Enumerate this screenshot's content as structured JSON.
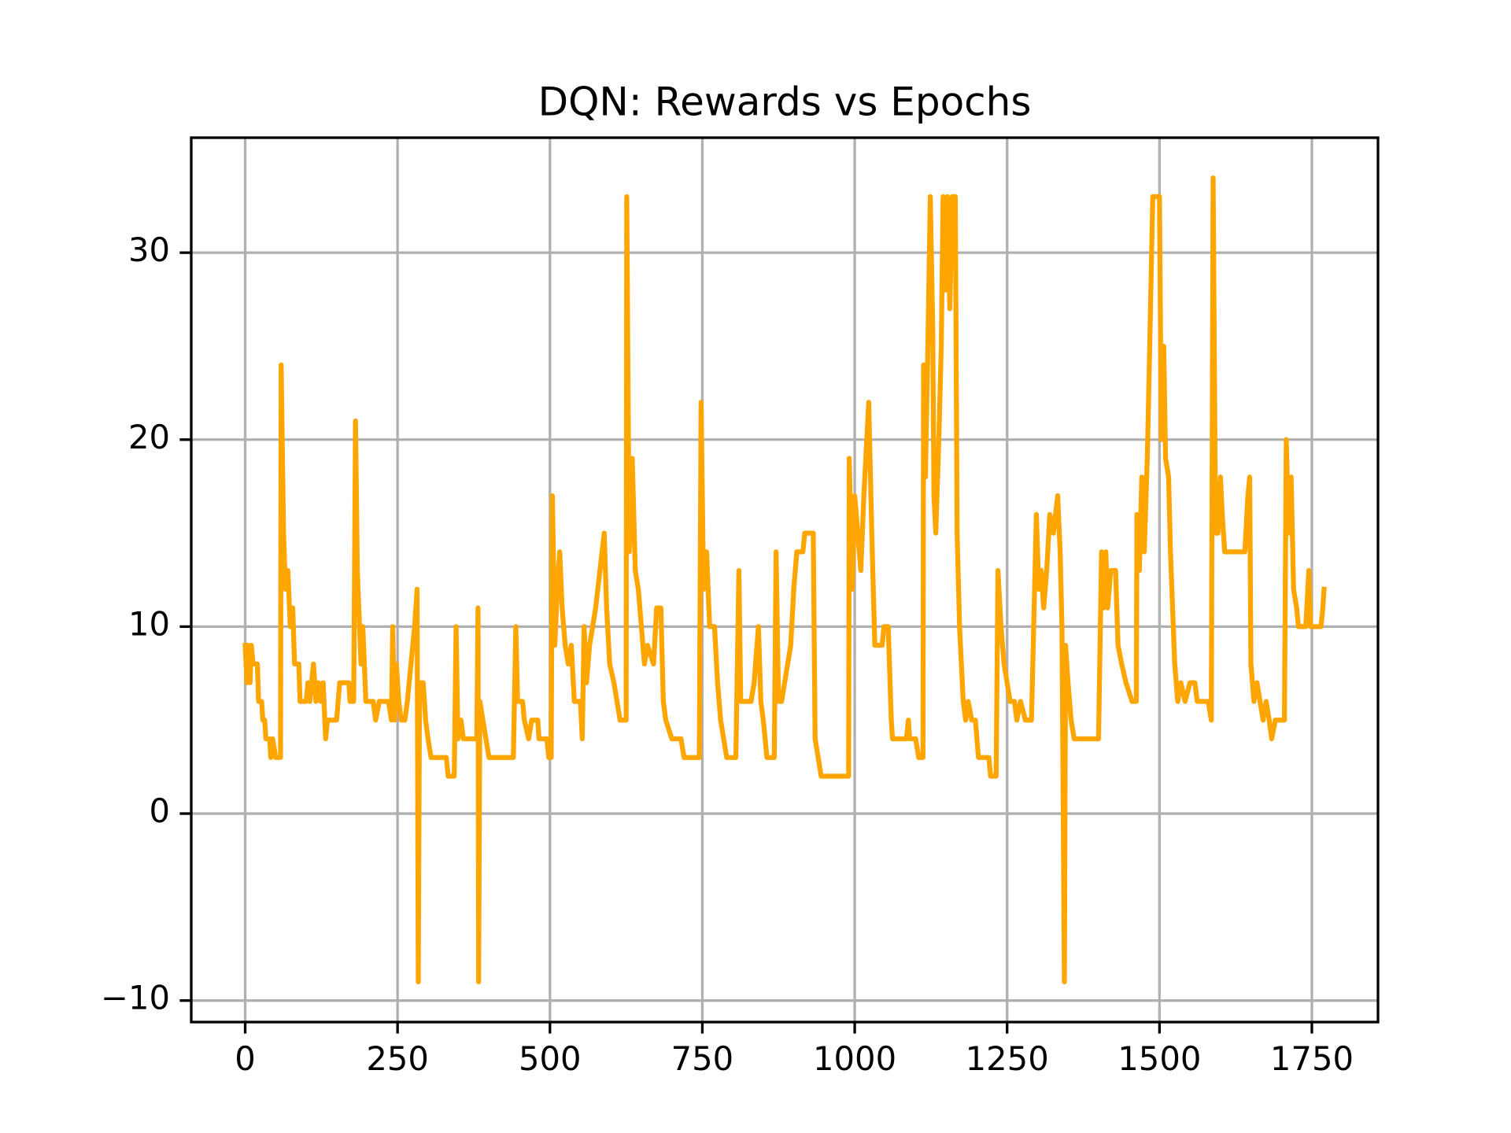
{
  "chart_data": {
    "type": "line",
    "title": "DQN: Rewards vs Epochs",
    "x": [
      0,
      3,
      5,
      8,
      10,
      13,
      20,
      22,
      27,
      29,
      32,
      34,
      40,
      42,
      45,
      50,
      58,
      59,
      63,
      66,
      70,
      74,
      78,
      81,
      88,
      90,
      100,
      103,
      106,
      112,
      116,
      120,
      124,
      128,
      132,
      135,
      150,
      155,
      170,
      172,
      178,
      181,
      184,
      190,
      193,
      198,
      210,
      214,
      220,
      235,
      240,
      242,
      245,
      248,
      252,
      256,
      262,
      266,
      272,
      278,
      282,
      284,
      286,
      292,
      296,
      300,
      305,
      330,
      333,
      343,
      346,
      349,
      354,
      358,
      380,
      382,
      383,
      385,
      390,
      395,
      400,
      440,
      444,
      447,
      455,
      458,
      465,
      470,
      480,
      482,
      495,
      498,
      502,
      504,
      508,
      512,
      516,
      520,
      525,
      530,
      535,
      540,
      550,
      553,
      556,
      560,
      565,
      575,
      589,
      593,
      598,
      605,
      610,
      615,
      625,
      626,
      630,
      635,
      640,
      645,
      650,
      655,
      660,
      670,
      675,
      682,
      686,
      690,
      700,
      715,
      720,
      745,
      748,
      752,
      757,
      762,
      770,
      775,
      780,
      785,
      790,
      805,
      810,
      813,
      830,
      835,
      842,
      846,
      850,
      856,
      868,
      871,
      875,
      880,
      885,
      895,
      900,
      905,
      915,
      918,
      932,
      935,
      940,
      945,
      990,
      991,
      996,
      1000,
      1005,
      1010,
      1015,
      1023,
      1028,
      1033,
      1045,
      1048,
      1055,
      1060,
      1062,
      1085,
      1088,
      1090,
      1100,
      1105,
      1112,
      1113,
      1116,
      1120,
      1124,
      1128,
      1130,
      1133,
      1138,
      1142,
      1145,
      1149,
      1152,
      1156,
      1160,
      1165,
      1168,
      1172,
      1178,
      1182,
      1186,
      1192,
      1198,
      1203,
      1220,
      1223,
      1232,
      1235,
      1240,
      1245,
      1250,
      1255,
      1262,
      1266,
      1272,
      1280,
      1290,
      1298,
      1302,
      1306,
      1310,
      1315,
      1320,
      1326,
      1333,
      1337,
      1340,
      1344,
      1346,
      1350,
      1355,
      1360,
      1400,
      1405,
      1408,
      1412,
      1415,
      1420,
      1428,
      1432,
      1438,
      1445,
      1455,
      1462,
      1463,
      1467,
      1471,
      1475,
      1480,
      1484,
      1489,
      1500,
      1503,
      1507,
      1510,
      1515,
      1518,
      1525,
      1530,
      1535,
      1542,
      1550,
      1558,
      1562,
      1580,
      1585,
      1588,
      1592,
      1596,
      1600,
      1603,
      1607,
      1640,
      1645,
      1648,
      1650,
      1655,
      1660,
      1665,
      1670,
      1675,
      1680,
      1684,
      1690,
      1700,
      1705,
      1708,
      1712,
      1716,
      1720,
      1725,
      1728,
      1740,
      1745,
      1748,
      1765,
      1768,
      1770
    ],
    "series": [
      {
        "color": "#ffa500",
        "values": [
          9,
          7,
          9,
          7,
          9,
          8,
          8,
          6,
          6,
          5,
          5,
          4,
          4,
          3,
          4,
          3,
          3,
          24,
          15,
          12,
          13,
          10,
          11,
          8,
          8,
          6,
          6,
          7,
          6,
          8,
          6,
          7,
          6,
          7,
          4,
          5,
          5,
          7,
          7,
          6,
          6,
          21,
          13,
          8,
          10,
          6,
          6,
          5,
          6,
          6,
          5,
          10,
          5,
          8,
          6,
          5,
          5,
          6,
          8,
          10,
          12,
          -9,
          7,
          7,
          5,
          4,
          3,
          3,
          2,
          2,
          10,
          4,
          5,
          4,
          4,
          11,
          -9,
          6,
          5,
          4,
          3,
          3,
          10,
          6,
          6,
          5,
          4,
          5,
          5,
          4,
          4,
          3,
          3,
          17,
          9,
          12,
          14,
          11,
          9,
          8,
          9,
          6,
          6,
          4,
          10,
          7,
          9,
          11,
          15,
          11,
          8,
          7,
          6,
          5,
          5,
          33,
          14,
          19,
          13,
          12,
          10,
          8,
          9,
          8,
          11,
          11,
          6,
          5,
          4,
          4,
          3,
          3,
          22,
          12,
          14,
          10,
          10,
          7,
          5,
          4,
          3,
          3,
          13,
          6,
          6,
          7,
          10,
          6,
          5,
          3,
          3,
          14,
          6,
          6,
          7,
          9,
          12,
          14,
          14,
          15,
          15,
          4,
          3,
          2,
          2,
          19,
          12,
          17,
          15,
          13,
          17,
          22,
          15,
          9,
          9,
          10,
          10,
          5,
          4,
          4,
          5,
          4,
          4,
          3,
          3,
          24,
          18,
          25,
          33,
          26,
          17,
          15,
          20,
          25,
          33,
          28,
          33,
          27,
          33,
          33,
          15,
          10,
          6,
          5,
          6,
          5,
          5,
          3,
          3,
          2,
          2,
          13,
          10,
          8,
          7,
          6,
          6,
          5,
          6,
          5,
          5,
          16,
          12,
          13,
          11,
          13,
          16,
          15,
          17,
          14,
          10,
          -9,
          9,
          7,
          5,
          4,
          4,
          14,
          11,
          14,
          11,
          13,
          13,
          9,
          8,
          7,
          6,
          6,
          16,
          13,
          18,
          14,
          19,
          25,
          33,
          33,
          20,
          25,
          19,
          18,
          14,
          8,
          6,
          7,
          6,
          7,
          7,
          6,
          6,
          5,
          34,
          15,
          15,
          18,
          16,
          14,
          14,
          17,
          18,
          8,
          6,
          7,
          6,
          5,
          6,
          5,
          4,
          5,
          5,
          5,
          20,
          15,
          18,
          12,
          11,
          10,
          10,
          13,
          10,
          10,
          11,
          12
        ]
      }
    ],
    "xlim": [
      -88.5,
      1858.5
    ],
    "xticks": [
      0,
      250,
      500,
      750,
      1000,
      1250,
      1500,
      1750
    ],
    "ylim": [
      -11.15,
      36.15
    ],
    "yticks": [
      {
        "value": -10,
        "label": "−10"
      },
      0,
      10,
      20,
      30
    ],
    "grid": true
  }
}
